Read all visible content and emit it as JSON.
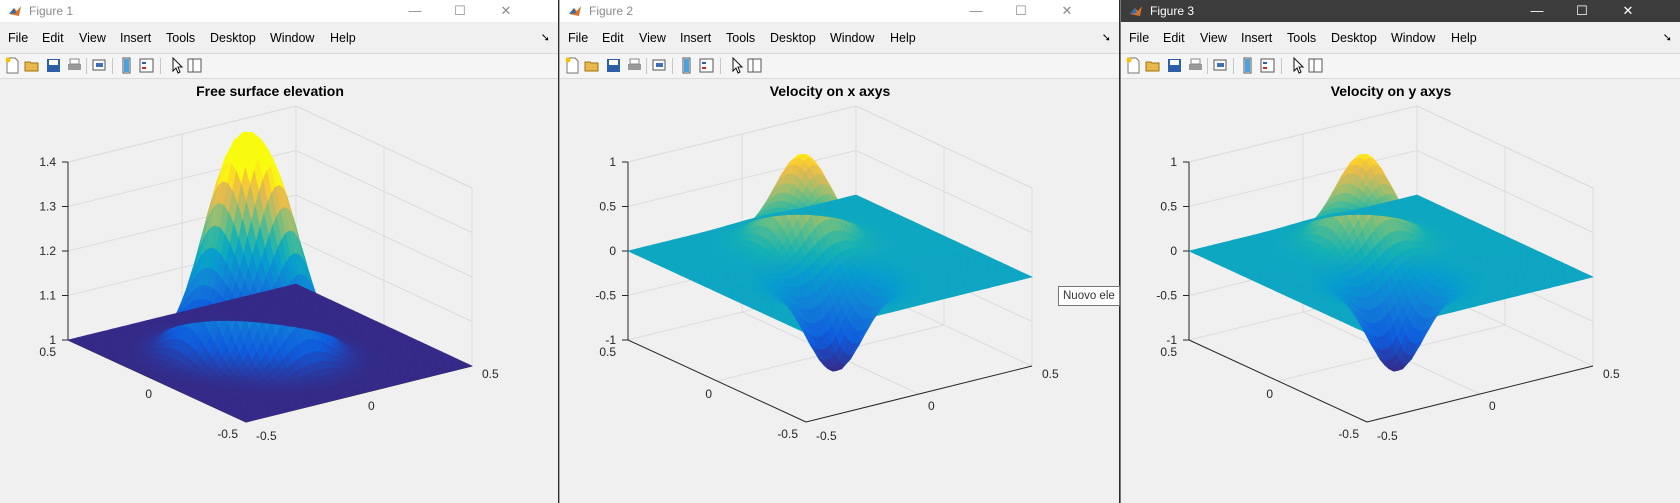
{
  "windows": [
    {
      "title": "Figure 1",
      "active": false,
      "plot_title": "Free surface elevation",
      "z_ticks": [
        "1",
        "1.1",
        "1.2",
        "1.3",
        "1.4"
      ],
      "x_ticks": [
        "-0.5",
        "0",
        "0.5"
      ],
      "y_ticks": [
        "-0.5",
        "0",
        "0.5"
      ]
    },
    {
      "title": "Figure 2",
      "active": false,
      "plot_title": "Velocity on x axys",
      "z_ticks": [
        "-1",
        "-0.5",
        "0",
        "0.5",
        "1"
      ],
      "x_ticks": [
        "-0.5",
        "0",
        "0.5"
      ],
      "y_ticks": [
        "-0.5",
        "0",
        "0.5"
      ]
    },
    {
      "title": "Figure 3",
      "active": true,
      "plot_title": "Velocity on y axys",
      "z_ticks": [
        "-1",
        "-0.5",
        "0",
        "0.5",
        "1"
      ],
      "x_ticks": [
        "-0.5",
        "0",
        "0.5"
      ],
      "y_ticks": [
        "-0.5",
        "0",
        "0.5"
      ]
    }
  ],
  "menu": [
    "File",
    "Edit",
    "View",
    "Insert",
    "Tools",
    "Desktop",
    "Window",
    "Help"
  ],
  "window_controls": {
    "minimize": "—",
    "maximize": "☐",
    "close": "✕"
  },
  "toolbar_icons": [
    "new-figure-icon",
    "open-file-icon",
    "save-icon",
    "print-icon",
    "link-plot-icon",
    "colorbar-icon",
    "legend-icon",
    "pointer-icon",
    "property-editor-icon"
  ],
  "tooltip": "Nuovo ele",
  "colormap": "parula"
}
